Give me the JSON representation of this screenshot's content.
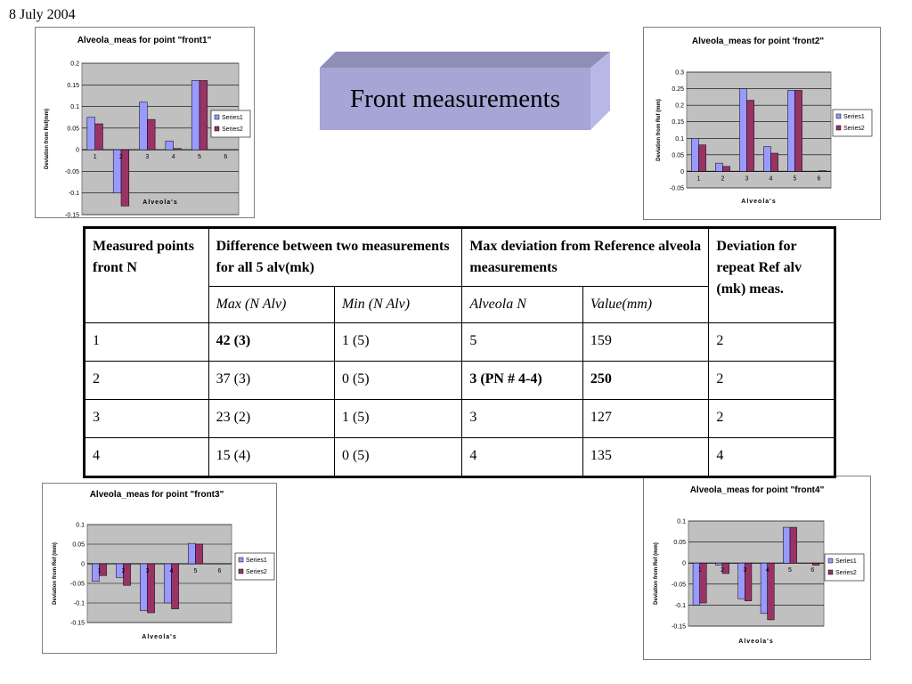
{
  "date": "8 July 2004",
  "title": "Front measurements",
  "table": {
    "headers": {
      "measured": "Measured points front N",
      "difference": "Difference between two measurements for all 5 alv(mk)",
      "maxdev": "Max deviation from Reference alveola measurements",
      "repeat": "Deviation for repeat Ref alv (mk) meas."
    },
    "subheaders": {
      "max": "Max (N Alv)",
      "min": "Min (N Alv)",
      "alveola": "Alveola N",
      "value": "Value(mm)"
    },
    "rows": [
      {
        "n": "1",
        "max": "42 (3)",
        "min": "1 (5)",
        "alv": "5",
        "val": "159",
        "rep": "2"
      },
      {
        "n": "2",
        "max": "37  (3)",
        "min": "0 (5)",
        "alv": "3 (PN # 4-4)",
        "val": "250",
        "rep": "2"
      },
      {
        "n": "3",
        "max": "23 (2)",
        "min": "1 (5)",
        "alv": "3",
        "val": "127",
        "rep": "2"
      },
      {
        "n": "4",
        "max": "15 (4)",
        "min": "0 (5)",
        "alv": "4",
        "val": "135",
        "rep": "4"
      }
    ]
  },
  "colors": {
    "series1": "#9999ff",
    "series2": "#993366",
    "plot_bg": "#c0c0c0"
  },
  "chart_data": [
    {
      "type": "bar",
      "title": "Alveola_meas for point \"front1\"",
      "xlabel": "Alveola's",
      "ylabel": "Deviation from Ref(mm)",
      "categories": [
        "1",
        "2",
        "3",
        "4",
        "5",
        "6"
      ],
      "ylim": [
        -0.15,
        0.2
      ],
      "yticks": [
        "0.2",
        "0.15",
        "0.1",
        "0.05",
        "0",
        "-0.05",
        "-0.1",
        "-0.15"
      ],
      "grid": true,
      "legend": "right",
      "series": [
        {
          "name": "Series1",
          "values": [
            0.075,
            -0.1,
            0.11,
            0.02,
            0.16,
            0
          ]
        },
        {
          "name": "Series2",
          "values": [
            0.06,
            -0.13,
            0.07,
            0.003,
            0.16,
            0
          ]
        }
      ]
    },
    {
      "type": "bar",
      "title": "Alveola_meas for point 'front2\"",
      "xlabel": "Alveola's",
      "ylabel": "Deviation from Ref (mm)",
      "categories": [
        "1",
        "2",
        "3",
        "4",
        "5",
        "6"
      ],
      "ylim": [
        -0.05,
        0.3
      ],
      "yticks": [
        "0.3",
        "0.25",
        "0.2",
        "0.15",
        "0.1",
        "0.05",
        "0",
        "-0.05"
      ],
      "grid": true,
      "legend": "right",
      "series": [
        {
          "name": "Series1",
          "values": [
            0.1,
            0.025,
            0.25,
            0.075,
            0.245,
            0
          ]
        },
        {
          "name": "Series2",
          "values": [
            0.08,
            0.015,
            0.215,
            0.055,
            0.245,
            0.002
          ]
        }
      ]
    },
    {
      "type": "bar",
      "title": "Alveola_meas for point \"front3\"",
      "xlabel": "Alveola's",
      "ylabel": "Deviation from Ref (mm)",
      "categories": [
        "1",
        "2",
        "3",
        "4",
        "5",
        "6"
      ],
      "ylim": [
        -0.15,
        0.1
      ],
      "yticks": [
        "0.1",
        "0.05",
        "0",
        "-0.05",
        "-0.1",
        "-0.15"
      ],
      "grid": true,
      "legend": "right",
      "series": [
        {
          "name": "Series1",
          "values": [
            -0.045,
            -0.035,
            -0.12,
            -0.1,
            0.052,
            0
          ]
        },
        {
          "name": "Series2",
          "values": [
            -0.03,
            -0.055,
            -0.125,
            -0.115,
            0.05,
            0
          ]
        }
      ]
    },
    {
      "type": "bar",
      "title": "Alveola_meas for point \"front4\"",
      "xlabel": "Alveola's",
      "ylabel": "Deviation from Ref (mm)",
      "categories": [
        "1",
        "2",
        "3",
        "4",
        "5",
        "6"
      ],
      "ylim": [
        -0.15,
        0.1
      ],
      "yticks": [
        "0.1",
        "0.05",
        "0",
        "-0.05",
        "-0.1",
        "-0.15"
      ],
      "grid": true,
      "legend": "right",
      "series": [
        {
          "name": "Series1",
          "values": [
            -0.1,
            -0.005,
            -0.085,
            -0.12,
            0.085,
            0
          ]
        },
        {
          "name": "Series2",
          "values": [
            -0.095,
            -0.025,
            -0.09,
            -0.135,
            0.085,
            -0.005
          ]
        }
      ]
    }
  ]
}
